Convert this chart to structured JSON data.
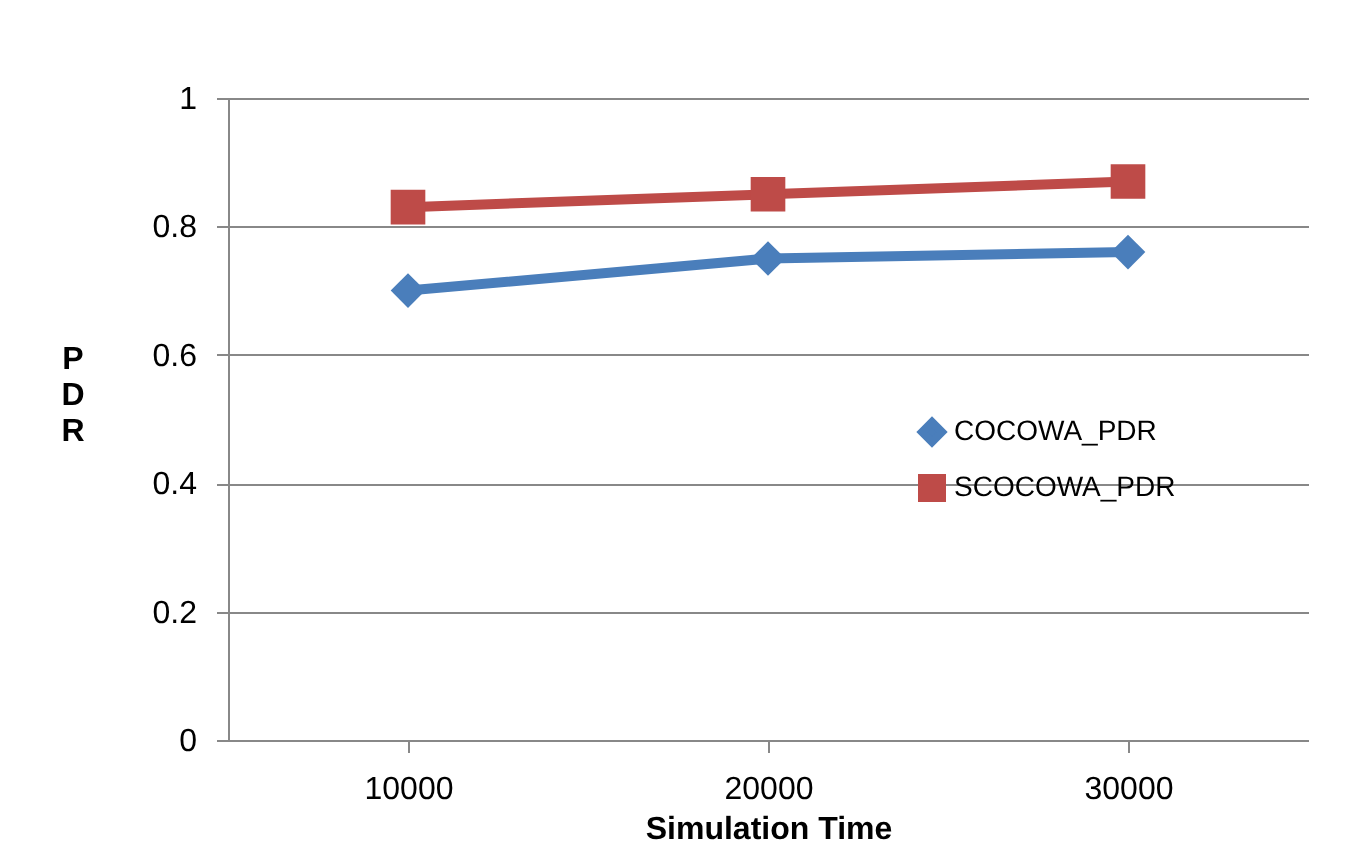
{
  "chart_data": {
    "type": "line",
    "xlabel": "Simulation Time",
    "ylabel": "PDR",
    "categories": [
      "10000",
      "20000",
      "30000"
    ],
    "series": [
      {
        "name": "COCOWA_PDR",
        "color": "#4a7ebb",
        "marker": "diamond",
        "values": [
          0.7,
          0.75,
          0.76
        ]
      },
      {
        "name": "SCOCOWA_PDR",
        "color": "#be4b48",
        "marker": "square",
        "values": [
          0.83,
          0.85,
          0.87
        ]
      }
    ],
    "ylim": [
      0,
      1
    ],
    "yticks": [
      0,
      0.2,
      0.4,
      0.6,
      0.8,
      1
    ],
    "grid": "y",
    "legend": "right"
  }
}
